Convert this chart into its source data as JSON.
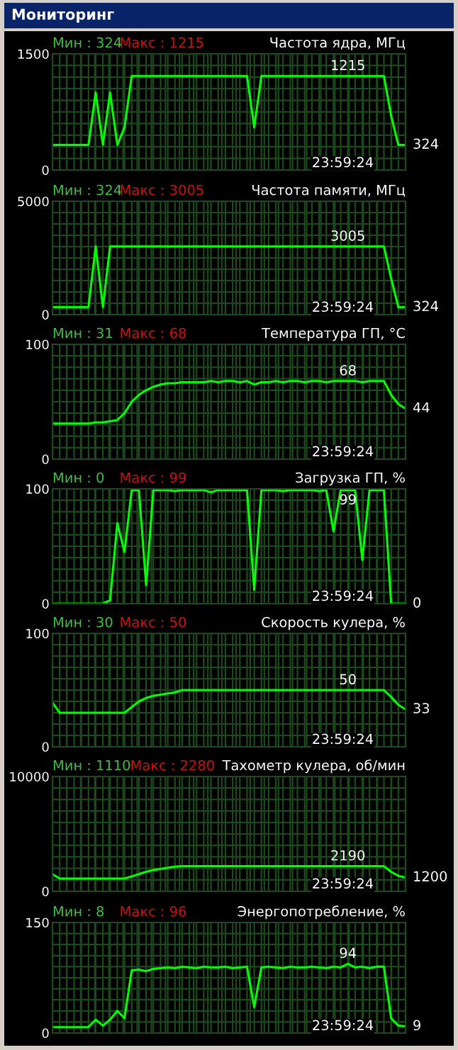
{
  "chart_data": [
    {
      "type": "other",
      "title": "Мониторинг"
    },
    {
      "type": "line",
      "title": "Частота ядра, МГц",
      "categories": [
        null,
        null,
        null,
        null,
        null,
        null,
        null,
        null,
        null,
        null,
        null,
        null,
        null,
        null,
        null,
        null,
        null,
        null,
        null,
        null,
        null,
        null,
        null,
        null,
        null,
        null,
        null,
        null,
        null,
        null,
        null,
        null,
        null,
        null,
        null,
        null,
        null,
        null,
        null,
        null,
        null,
        null,
        null,
        null,
        null,
        null,
        null,
        null,
        null,
        null
      ],
      "series": [
        {
          "color": "#00ff00",
          "values": [
            324,
            324,
            324,
            324,
            324,
            324,
            1000,
            324,
            1000,
            324,
            550,
            1215,
            1215,
            1215,
            1215,
            1215,
            1215,
            1215,
            1215,
            1215,
            1215,
            1215,
            1215,
            1215,
            1215,
            1215,
            1215,
            1215,
            550,
            1215,
            1215,
            1215,
            1215,
            1215,
            1215,
            1215,
            1215,
            1215,
            1215,
            1215,
            1215,
            1215,
            1215,
            1215,
            1215,
            1215,
            1215,
            700,
            324,
            324
          ]
        }
      ],
      "ylim": [
        0,
        1500
      ],
      "yticks": [
        0,
        1500
      ],
      "grid": true,
      "tick_labels": "y",
      "marker": "none",
      "line_style": "solid",
      "annotations": [
        "Мин : 324",
        "Макс : 1215",
        "23:59:24",
        "1215",
        "324"
      ]
    },
    {
      "type": "line",
      "title": "Частота памяти, МГц",
      "categories": [
        null,
        null,
        null,
        null,
        null,
        null,
        null,
        null,
        null,
        null,
        null,
        null,
        null,
        null,
        null,
        null,
        null,
        null,
        null,
        null,
        null,
        null,
        null,
        null,
        null,
        null,
        null,
        null,
        null,
        null,
        null,
        null,
        null,
        null,
        null,
        null,
        null,
        null,
        null,
        null,
        null,
        null,
        null,
        null,
        null,
        null,
        null,
        null,
        null,
        null
      ],
      "series": [
        {
          "color": "#00ff00",
          "values": [
            324,
            324,
            324,
            324,
            324,
            324,
            3005,
            324,
            3005,
            3005,
            3005,
            3005,
            3005,
            3005,
            3005,
            3005,
            3005,
            3005,
            3005,
            3005,
            3005,
            3005,
            3005,
            3005,
            3005,
            3005,
            3005,
            3005,
            3005,
            3005,
            3005,
            3005,
            3005,
            3005,
            3005,
            3005,
            3005,
            3005,
            3005,
            3005,
            3005,
            3005,
            3005,
            3005,
            3005,
            3005,
            3005,
            1600,
            324,
            324
          ]
        }
      ],
      "ylim": [
        0,
        5000
      ],
      "yticks": [
        0,
        5000
      ],
      "grid": true,
      "tick_labels": "y",
      "marker": "none",
      "line_style": "solid",
      "annotations": [
        "Мин : 324",
        "Макс : 3005",
        "23:59:24",
        "3005",
        "324"
      ]
    },
    {
      "type": "line",
      "title": "Температура ГП, °C",
      "categories": [
        null,
        null,
        null,
        null,
        null,
        null,
        null,
        null,
        null,
        null,
        null,
        null,
        null,
        null,
        null,
        null,
        null,
        null,
        null,
        null,
        null,
        null,
        null,
        null,
        null,
        null,
        null,
        null,
        null,
        null,
        null,
        null,
        null,
        null,
        null,
        null,
        null,
        null,
        null,
        null,
        null,
        null,
        null,
        null,
        null,
        null,
        null,
        null,
        null,
        null
      ],
      "series": [
        {
          "color": "#00ff00",
          "values": [
            31,
            31,
            31,
            31,
            31,
            31,
            32,
            32,
            33,
            34,
            40,
            50,
            56,
            60,
            63,
            65,
            66,
            66,
            67,
            67,
            67,
            67,
            68,
            67,
            68,
            68,
            67,
            68,
            65,
            67,
            67,
            68,
            67,
            68,
            68,
            67,
            68,
            68,
            67,
            68,
            68,
            68,
            68,
            67,
            68,
            68,
            68,
            56,
            48,
            44
          ]
        }
      ],
      "ylim": [
        0,
        100
      ],
      "yticks": [
        0,
        100
      ],
      "grid": true,
      "tick_labels": "y",
      "marker": "none",
      "line_style": "solid",
      "annotations": [
        "Мин : 31",
        "Макс : 68",
        "23:59:24",
        "68",
        "44"
      ]
    },
    {
      "type": "line",
      "title": "Загрузка ГП, %",
      "categories": [
        null,
        null,
        null,
        null,
        null,
        null,
        null,
        null,
        null,
        null,
        null,
        null,
        null,
        null,
        null,
        null,
        null,
        null,
        null,
        null,
        null,
        null,
        null,
        null,
        null,
        null,
        null,
        null,
        null,
        null,
        null,
        null,
        null,
        null,
        null,
        null,
        null,
        null,
        null,
        null,
        null,
        null,
        null,
        null,
        null,
        null,
        null,
        null,
        null,
        null
      ],
      "series": [
        {
          "color": "#00ff00",
          "values": [
            0,
            0,
            0,
            0,
            0,
            0,
            0,
            0,
            3,
            70,
            45,
            99,
            99,
            16,
            99,
            99,
            99,
            98,
            99,
            99,
            99,
            99,
            97,
            99,
            99,
            99,
            99,
            99,
            12,
            99,
            99,
            99,
            98,
            99,
            99,
            99,
            99,
            98,
            99,
            63,
            99,
            99,
            99,
            38,
            99,
            99,
            99,
            0,
            0,
            0
          ]
        }
      ],
      "ylim": [
        0,
        100
      ],
      "yticks": [
        0,
        100
      ],
      "grid": true,
      "tick_labels": "y",
      "marker": "none",
      "line_style": "solid",
      "annotations": [
        "Мин : 0",
        "Макс : 99",
        "23:59:24",
        "99",
        "0"
      ]
    },
    {
      "type": "line",
      "title": "Скорость кулера, %",
      "categories": [
        null,
        null,
        null,
        null,
        null,
        null,
        null,
        null,
        null,
        null,
        null,
        null,
        null,
        null,
        null,
        null,
        null,
        null,
        null,
        null,
        null,
        null,
        null,
        null,
        null,
        null,
        null,
        null,
        null,
        null,
        null,
        null,
        null,
        null,
        null,
        null,
        null,
        null,
        null,
        null,
        null,
        null,
        null,
        null,
        null,
        null,
        null,
        null,
        null,
        null
      ],
      "series": [
        {
          "color": "#00ff00",
          "values": [
            39,
            30,
            30,
            30,
            30,
            30,
            30,
            30,
            30,
            30,
            30,
            35,
            40,
            43,
            45,
            46,
            47,
            48,
            50,
            50,
            50,
            50,
            50,
            50,
            50,
            50,
            50,
            50,
            50,
            50,
            50,
            50,
            50,
            50,
            50,
            50,
            50,
            50,
            50,
            50,
            50,
            50,
            50,
            50,
            50,
            50,
            50,
            44,
            37,
            33
          ]
        }
      ],
      "ylim": [
        0,
        100
      ],
      "yticks": [
        0,
        100
      ],
      "grid": true,
      "tick_labels": "y",
      "marker": "none",
      "line_style": "solid",
      "annotations": [
        "Мин : 30",
        "Макс : 50",
        "23:59:24",
        "50",
        "33"
      ]
    },
    {
      "type": "line",
      "title": "Тахометр кулера, об/мин",
      "categories": [
        null,
        null,
        null,
        null,
        null,
        null,
        null,
        null,
        null,
        null,
        null,
        null,
        null,
        null,
        null,
        null,
        null,
        null,
        null,
        null,
        null,
        null,
        null,
        null,
        null,
        null,
        null,
        null,
        null,
        null,
        null,
        null,
        null,
        null,
        null,
        null,
        null,
        null,
        null,
        null,
        null,
        null,
        null,
        null,
        null,
        null,
        null,
        null,
        null,
        null
      ],
      "series": [
        {
          "color": "#00ff00",
          "values": [
            1500,
            1110,
            1110,
            1110,
            1110,
            1110,
            1110,
            1110,
            1110,
            1110,
            1110,
            1300,
            1500,
            1700,
            1850,
            1950,
            2050,
            2150,
            2190,
            2190,
            2190,
            2190,
            2190,
            2190,
            2190,
            2190,
            2190,
            2190,
            2190,
            2190,
            2190,
            2190,
            2190,
            2190,
            2190,
            2190,
            2190,
            2190,
            2190,
            2190,
            2190,
            2190,
            2190,
            2190,
            2190,
            2190,
            2190,
            1700,
            1350,
            1200
          ]
        }
      ],
      "ylim": [
        0,
        10000
      ],
      "yticks": [
        0,
        10000
      ],
      "grid": true,
      "tick_labels": "y",
      "marker": "none",
      "line_style": "solid",
      "annotations": [
        "Мин : 1110",
        "Макс : 2280",
        "23:59:24",
        "2190",
        "1200"
      ]
    },
    {
      "type": "line",
      "title": "Энергопотребление, %",
      "categories": [
        null,
        null,
        null,
        null,
        null,
        null,
        null,
        null,
        null,
        null,
        null,
        null,
        null,
        null,
        null,
        null,
        null,
        null,
        null,
        null,
        null,
        null,
        null,
        null,
        null,
        null,
        null,
        null,
        null,
        null,
        null,
        null,
        null,
        null,
        null,
        null,
        null,
        null,
        null,
        null,
        null,
        null,
        null,
        null,
        null,
        null,
        null,
        null,
        null,
        null
      ],
      "series": [
        {
          "color": "#00ff00",
          "values": [
            8,
            8,
            8,
            8,
            8,
            8,
            18,
            10,
            18,
            30,
            20,
            85,
            86,
            84,
            87,
            88,
            89,
            88,
            90,
            89,
            88,
            90,
            89,
            89,
            90,
            88,
            89,
            90,
            35,
            89,
            90,
            89,
            88,
            90,
            89,
            89,
            90,
            89,
            88,
            90,
            89,
            94,
            89,
            90,
            88,
            90,
            90,
            20,
            10,
            9
          ]
        }
      ],
      "ylim": [
        0,
        150
      ],
      "yticks": [
        0,
        150
      ],
      "grid": true,
      "tick_labels": "y",
      "marker": "none",
      "line_style": "solid",
      "annotations": [
        "Мин : 8",
        "Макс : 96",
        "23:59:24",
        "94",
        "9"
      ]
    }
  ]
}
